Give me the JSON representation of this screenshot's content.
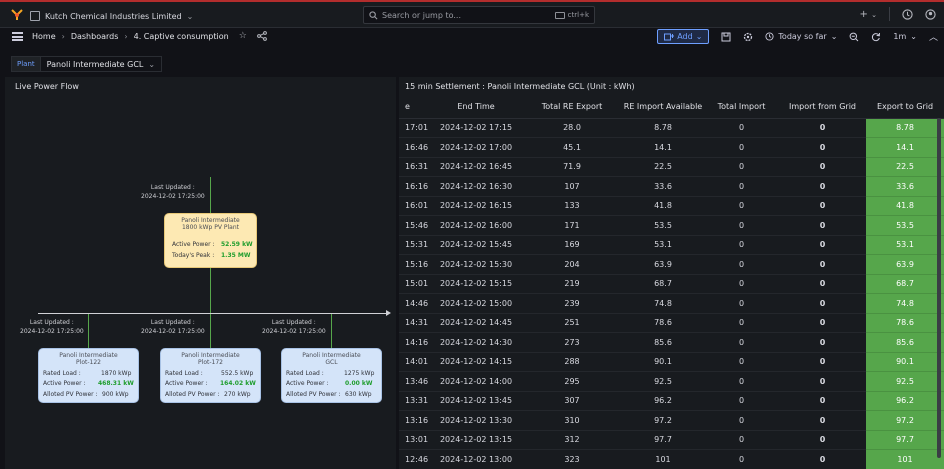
{
  "topbar": {
    "org_name": "Kutch Chemical Industries Limited",
    "search_placeholder": "Search or jump to...",
    "search_shortcut": "ctrl+k",
    "plus": "+",
    "chevron": "⌄"
  },
  "navbar": {
    "breadcrumbs": [
      "Home",
      "Dashboards",
      "4. Captive consumption"
    ],
    "add_label": "Add",
    "time_range": "Today so far",
    "refresh_interval": "1m"
  },
  "variables": {
    "label": "Plant",
    "value": "Panoli Intermediate GCL"
  },
  "left_panel": {
    "title": "Live Power Flow",
    "plant": {
      "last_updated_label": "Last Updated :",
      "last_updated": "2024-12-02 17:25:00",
      "name_line1": "Panoli Intermediate",
      "name_line2": "1800 kWp PV Plant",
      "active_power_label": "Active Power :",
      "active_power": "52.59 kW",
      "todays_peak_label": "Today's Peak :",
      "todays_peak": "1.35 MW"
    },
    "consumers": [
      {
        "last_updated_label": "Last Updated :",
        "last_updated": "2024-12-02 17:25:00",
        "name_line1": "Panoli Intermediate",
        "name_line2": "Plot-122",
        "rated_load_label": "Rated Load :",
        "rated_load": "1870 kWp",
        "active_power_label": "Active Power :",
        "active_power": "468.31 kW",
        "alloted_label": "Alloted PV Power :",
        "alloted": "900 kWp"
      },
      {
        "last_updated_label": "Last Updated :",
        "last_updated": "2024-12-02 17:25:00",
        "name_line1": "Panoli Intermediate",
        "name_line2": "Plot-172",
        "rated_load_label": "Rated Load :",
        "rated_load": "552.5 kWp",
        "active_power_label": "Active Power :",
        "active_power": "164.02 kW",
        "alloted_label": "Alloted PV Power :",
        "alloted": "270 kWp"
      },
      {
        "last_updated_label": "Last Updated :",
        "last_updated": "2024-12-02 17:25:00",
        "name_line1": "Panoli Intermediate",
        "name_line2": "GCL",
        "rated_load_label": "Rated Load :",
        "rated_load": "1275 kWp",
        "active_power_label": "Active Power :",
        "active_power": "0.00 kW",
        "alloted_label": "Alloted PV Power :",
        "alloted": "630 kWp"
      }
    ]
  },
  "right_panel": {
    "title": "15 min Settlement : Panoli Intermediate GCL (Unit : kWh)",
    "columns": [
      "e",
      "End Time",
      "Total RE Export",
      "RE Import Available",
      "Total Import",
      "Import from Grid",
      "Export to Grid"
    ],
    "rows": [
      [
        "17:01",
        "2024-12-02 17:15",
        "28.0",
        "8.78",
        "0",
        "0",
        "8.78"
      ],
      [
        "16:46",
        "2024-12-02 17:00",
        "45.1",
        "14.1",
        "0",
        "0",
        "14.1"
      ],
      [
        "16:31",
        "2024-12-02 16:45",
        "71.9",
        "22.5",
        "0",
        "0",
        "22.5"
      ],
      [
        "16:16",
        "2024-12-02 16:30",
        "107",
        "33.6",
        "0",
        "0",
        "33.6"
      ],
      [
        "16:01",
        "2024-12-02 16:15",
        "133",
        "41.8",
        "0",
        "0",
        "41.8"
      ],
      [
        "15:46",
        "2024-12-02 16:00",
        "171",
        "53.5",
        "0",
        "0",
        "53.5"
      ],
      [
        "15:31",
        "2024-12-02 15:45",
        "169",
        "53.1",
        "0",
        "0",
        "53.1"
      ],
      [
        "15:16",
        "2024-12-02 15:30",
        "204",
        "63.9",
        "0",
        "0",
        "63.9"
      ],
      [
        "15:01",
        "2024-12-02 15:15",
        "219",
        "68.7",
        "0",
        "0",
        "68.7"
      ],
      [
        "14:46",
        "2024-12-02 15:00",
        "239",
        "74.8",
        "0",
        "0",
        "74.8"
      ],
      [
        "14:31",
        "2024-12-02 14:45",
        "251",
        "78.6",
        "0",
        "0",
        "78.6"
      ],
      [
        "14:16",
        "2024-12-02 14:30",
        "273",
        "85.6",
        "0",
        "0",
        "85.6"
      ],
      [
        "14:01",
        "2024-12-02 14:15",
        "288",
        "90.1",
        "0",
        "0",
        "90.1"
      ],
      [
        "13:46",
        "2024-12-02 14:00",
        "295",
        "92.5",
        "0",
        "0",
        "92.5"
      ],
      [
        "13:31",
        "2024-12-02 13:45",
        "307",
        "96.2",
        "0",
        "0",
        "96.2"
      ],
      [
        "13:16",
        "2024-12-02 13:30",
        "310",
        "97.2",
        "0",
        "0",
        "97.2"
      ],
      [
        "13:01",
        "2024-12-02 13:15",
        "312",
        "97.7",
        "0",
        "0",
        "97.7"
      ],
      [
        "12:46",
        "2024-12-02 13:00",
        "323",
        "101",
        "0",
        "0",
        "101"
      ]
    ]
  },
  "colors": {
    "accent": "#6e9fff",
    "export_cell": "#56a64b",
    "plant_card": "#fde9b3",
    "consumer_card": "#d4e4f9",
    "active_power": "#1f9d2d"
  }
}
